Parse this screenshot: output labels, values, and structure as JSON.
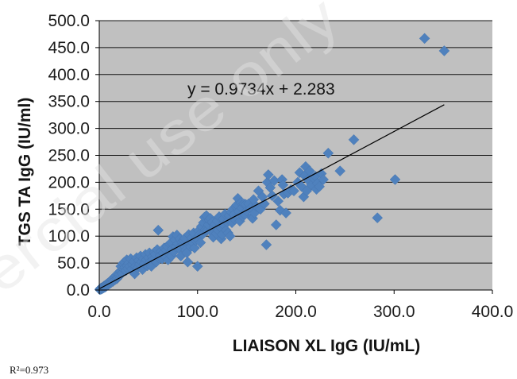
{
  "chart_data": {
    "type": "scatter",
    "title": "",
    "xlabel": "LIAISON XL IgG (IU/mL)",
    "ylabel": "TGS TA IgG (IU/ml)",
    "xlim": [
      0,
      400
    ],
    "ylim": [
      0,
      500
    ],
    "xticks": [
      "0.0",
      "100.0",
      "200.0",
      "300.0",
      "400.0"
    ],
    "yticks": [
      "0.0",
      "50.0",
      "100.0",
      "150.0",
      "200.0",
      "250.0",
      "300.0",
      "350.0",
      "400.0",
      "450.0",
      "500.0"
    ],
    "grid": "horizontal",
    "legend": "none",
    "colors": {
      "plot_background": "#c0c0c0",
      "gridline": "#111111",
      "marker": "#4f81bd",
      "trendline": "#000000"
    },
    "trendline": {
      "type": "linear",
      "slope": 0.9734,
      "intercept": 2.283,
      "equation": "y = 0.9734x + 2.283"
    },
    "series": [
      {
        "marker": "diamond",
        "points": [
          [
            0.5,
            0.8
          ],
          [
            1,
            2.5
          ],
          [
            1.5,
            1.2
          ],
          [
            2,
            3.8
          ],
          [
            2.5,
            2
          ],
          [
            3,
            4.5
          ],
          [
            3.5,
            3
          ],
          [
            4,
            6
          ],
          [
            4.5,
            4.2
          ],
          [
            5,
            7.5
          ],
          [
            5.5,
            5
          ],
          [
            6,
            8.5
          ],
          [
            6.5,
            6.2
          ],
          [
            7,
            10
          ],
          [
            7.5,
            7.5
          ],
          [
            8,
            11.5
          ],
          [
            8.5,
            9
          ],
          [
            9,
            13
          ],
          [
            9.5,
            10.5
          ],
          [
            10,
            14.5
          ],
          [
            10.5,
            12
          ],
          [
            11,
            16
          ],
          [
            11.5,
            13
          ],
          [
            12,
            18
          ],
          [
            12.5,
            14.5
          ],
          [
            13,
            20
          ],
          [
            14,
            16
          ],
          [
            14.5,
            22
          ],
          [
            15,
            18
          ],
          [
            16,
            24
          ],
          [
            16.5,
            19.5
          ],
          [
            17,
            27
          ],
          [
            18,
            21
          ],
          [
            18.5,
            30
          ],
          [
            19,
            23.5
          ],
          [
            20,
            26
          ],
          [
            20.5,
            29
          ],
          [
            21.5,
            35
          ],
          [
            22,
            44
          ],
          [
            23,
            31
          ],
          [
            24,
            49
          ],
          [
            25,
            38
          ],
          [
            25.5,
            52
          ],
          [
            26,
            42
          ],
          [
            27,
            36
          ],
          [
            28,
            56
          ],
          [
            28.5,
            45
          ],
          [
            29,
            40
          ],
          [
            30,
            50
          ],
          [
            31,
            44
          ],
          [
            32,
            58
          ],
          [
            33,
            39
          ],
          [
            34,
            47
          ],
          [
            35,
            53
          ],
          [
            36,
            30
          ],
          [
            37,
            44
          ],
          [
            38,
            60
          ],
          [
            39,
            41
          ],
          [
            40,
            55
          ],
          [
            41,
            48
          ],
          [
            42,
            63
          ],
          [
            43,
            52
          ],
          [
            44,
            38
          ],
          [
            45,
            58
          ],
          [
            46,
            49
          ],
          [
            47,
            66
          ],
          [
            48,
            56
          ],
          [
            49,
            45
          ],
          [
            50,
            60
          ],
          [
            51,
            69
          ],
          [
            52,
            53
          ],
          [
            53,
            44
          ],
          [
            54,
            62
          ],
          [
            55,
            57
          ],
          [
            56,
            70
          ],
          [
            57,
            66
          ],
          [
            58,
            52
          ],
          [
            59,
            75
          ],
          [
            60,
            111
          ],
          [
            61,
            59
          ],
          [
            62,
            64
          ],
          [
            63,
            72
          ],
          [
            64,
            58
          ],
          [
            65,
            69
          ],
          [
            66,
            78
          ],
          [
            67,
            62
          ],
          [
            68,
            74
          ],
          [
            69,
            81
          ],
          [
            70,
            56
          ],
          [
            71,
            67
          ],
          [
            72,
            85
          ],
          [
            73,
            88
          ],
          [
            73.5,
            63
          ],
          [
            74,
            76
          ],
          [
            75,
            99
          ],
          [
            76,
            71
          ],
          [
            77,
            93
          ],
          [
            78,
            80
          ],
          [
            79,
            102
          ],
          [
            80,
            86
          ],
          [
            81,
            78
          ],
          [
            82,
            95
          ],
          [
            83,
            63
          ],
          [
            84,
            89
          ],
          [
            85,
            84
          ],
          [
            86,
            92
          ],
          [
            87,
            96
          ],
          [
            88,
            74
          ],
          [
            89,
            69
          ],
          [
            90,
            52
          ],
          [
            91,
            103
          ],
          [
            92,
            88
          ],
          [
            93,
            80
          ],
          [
            94,
            97
          ],
          [
            95,
            88
          ],
          [
            96,
            106
          ],
          [
            97,
            78
          ],
          [
            98,
            92
          ],
          [
            99,
            96
          ],
          [
            100,
            44
          ],
          [
            101,
            110
          ],
          [
            102,
            103
          ],
          [
            103,
            88
          ],
          [
            104,
            118
          ],
          [
            105,
            103
          ],
          [
            106,
            125
          ],
          [
            107,
            135
          ],
          [
            108,
            112
          ],
          [
            109,
            138
          ],
          [
            110,
            111
          ],
          [
            111,
            121
          ],
          [
            112,
            130
          ],
          [
            113,
            133
          ],
          [
            114,
            108
          ],
          [
            115,
            126
          ],
          [
            116,
            98
          ],
          [
            117,
            118
          ],
          [
            118,
            122
          ],
          [
            119,
            105
          ],
          [
            120,
            128
          ],
          [
            121,
            111
          ],
          [
            122,
            136
          ],
          [
            123,
            117
          ],
          [
            124,
            95
          ],
          [
            125,
            103
          ],
          [
            126,
            132
          ],
          [
            127,
            120
          ],
          [
            128,
            141
          ],
          [
            129,
            111
          ],
          [
            130,
            126
          ],
          [
            131,
            106
          ],
          [
            132,
            138
          ],
          [
            133,
            100
          ],
          [
            134,
            145
          ],
          [
            135,
            125
          ],
          [
            136,
            150
          ],
          [
            137,
            140
          ],
          [
            138,
            131
          ],
          [
            139,
            155
          ],
          [
            140,
            158
          ],
          [
            141,
            170
          ],
          [
            142,
            146
          ],
          [
            143,
            128
          ],
          [
            144,
            162
          ],
          [
            145,
            152
          ],
          [
            146,
            137
          ],
          [
            147,
            160
          ],
          [
            148,
            140
          ],
          [
            149,
            159
          ],
          [
            150,
            147
          ],
          [
            152,
            160
          ],
          [
            154,
            152
          ],
          [
            155,
            135
          ],
          [
            156,
            133
          ],
          [
            157,
            168
          ],
          [
            158,
            143
          ],
          [
            160,
            155
          ],
          [
            162,
            184
          ],
          [
            164,
            150
          ],
          [
            166,
            173
          ],
          [
            168,
            160
          ],
          [
            170,
            84
          ],
          [
            171,
            200
          ],
          [
            172,
            214
          ],
          [
            174,
            190
          ],
          [
            176,
            175
          ],
          [
            178,
            203
          ],
          [
            180,
            121
          ],
          [
            182,
            165
          ],
          [
            184,
            148
          ],
          [
            186,
            205
          ],
          [
            187,
            195
          ],
          [
            188,
            178
          ],
          [
            190,
            143
          ],
          [
            192,
            180
          ],
          [
            195,
            186
          ],
          [
            198,
            184
          ],
          [
            202,
            200
          ],
          [
            204,
            218
          ],
          [
            206,
            192
          ],
          [
            208,
            173
          ],
          [
            209,
            212
          ],
          [
            210,
            229
          ],
          [
            211,
            184
          ],
          [
            212,
            205
          ],
          [
            214,
            221
          ],
          [
            216,
            195
          ],
          [
            218,
            208
          ],
          [
            220,
            211
          ],
          [
            221,
            187
          ],
          [
            222,
            198
          ],
          [
            224,
            192
          ],
          [
            226,
            216
          ],
          [
            228,
            205
          ],
          [
            233,
            254
          ],
          [
            245,
            221
          ],
          [
            259,
            279
          ],
          [
            283,
            134
          ],
          [
            301,
            205
          ],
          [
            331,
            467
          ],
          [
            351,
            444
          ]
        ]
      }
    ]
  },
  "caption": {
    "r_squared": "R²=0.973"
  },
  "watermark": {
    "text": "ercial use only"
  }
}
